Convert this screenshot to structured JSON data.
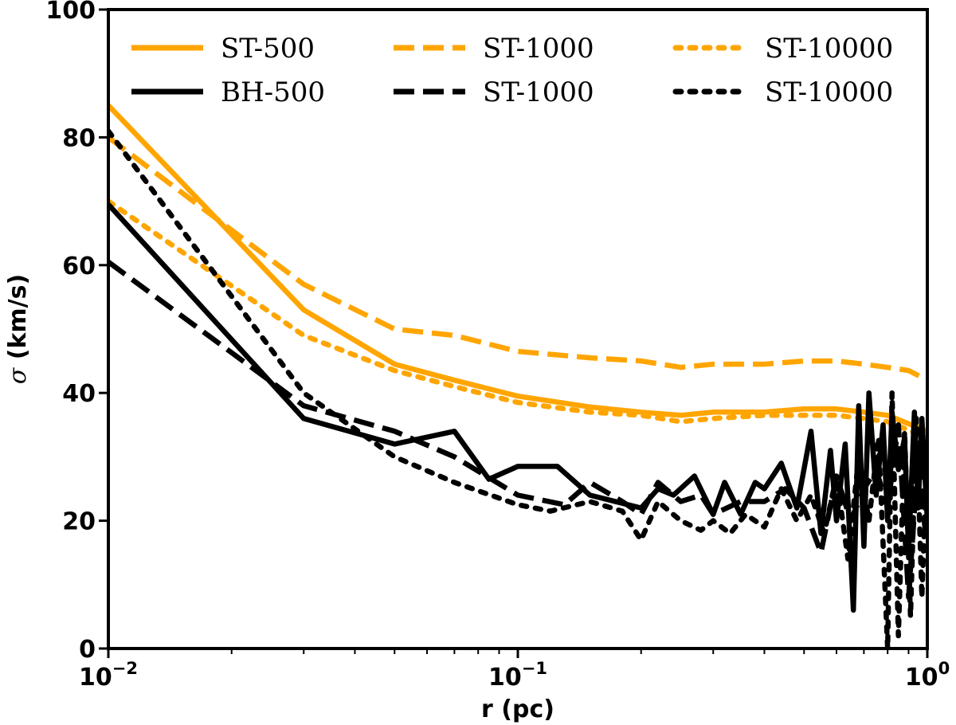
{
  "chart_data": {
    "type": "line",
    "xscale": "log",
    "xlim": [
      0.01,
      1
    ],
    "ylim": [
      0,
      100
    ],
    "xlabel": "r (pc)",
    "ylabel": {
      "symbol": "σ",
      "units": " (km/s)"
    },
    "x_ticks": [
      {
        "value": 0.01,
        "base": "10",
        "exp": "−2"
      },
      {
        "value": 0.1,
        "base": "10",
        "exp": "−1"
      },
      {
        "value": 1,
        "base": "10",
        "exp": "0"
      }
    ],
    "y_ticks": [
      0,
      20,
      40,
      60,
      80,
      100
    ],
    "colors": {
      "orange": "#FFA500",
      "black": "#000000"
    },
    "series": [
      {
        "name": "ST-500",
        "color": "#FFA500",
        "dash": "solid",
        "x": [
          0.01,
          0.03,
          0.05,
          0.07,
          0.1,
          0.15,
          0.2,
          0.25,
          0.3,
          0.4,
          0.5,
          0.6,
          0.7,
          0.8,
          1.0
        ],
        "y": [
          85,
          53,
          44.5,
          42,
          39.5,
          37.8,
          37,
          36.5,
          37,
          37,
          37.5,
          37.5,
          37,
          36.5,
          34
        ]
      },
      {
        "name": "ST-1000",
        "color": "#FFA500",
        "dash": "dashed",
        "x": [
          0.01,
          0.03,
          0.05,
          0.07,
          0.1,
          0.15,
          0.2,
          0.25,
          0.3,
          0.4,
          0.5,
          0.6,
          0.7,
          0.8,
          0.9,
          1.0
        ],
        "y": [
          80,
          57,
          50,
          49,
          46.5,
          45.5,
          45,
          44,
          44.5,
          44.5,
          45,
          45,
          44.5,
          44,
          43.5,
          42
        ]
      },
      {
        "name": "ST-10000",
        "color": "#FFA500",
        "dash": "dotted",
        "x": [
          0.01,
          0.03,
          0.05,
          0.07,
          0.1,
          0.15,
          0.2,
          0.25,
          0.3,
          0.4,
          0.5,
          0.6,
          0.7,
          0.8,
          1.0
        ],
        "y": [
          70,
          49,
          43.5,
          41,
          38.5,
          37,
          36.5,
          35.5,
          36,
          36.5,
          36.5,
          36.5,
          36,
          35.5,
          33
        ]
      },
      {
        "name": "BH-500",
        "color": "#000000",
        "dash": "solid",
        "x": [
          0.01,
          0.03,
          0.05,
          0.07,
          0.085,
          0.1,
          0.125,
          0.15,
          0.2,
          0.22,
          0.24,
          0.27,
          0.3,
          0.32,
          0.35,
          0.38,
          0.4,
          0.44,
          0.48,
          0.52,
          0.55,
          0.58,
          0.6,
          0.63,
          0.66,
          0.68,
          0.7,
          0.72,
          0.75,
          0.78,
          0.8,
          0.82,
          0.85,
          0.88,
          0.9,
          0.93,
          0.95,
          0.97,
          1.0
        ],
        "y": [
          69.5,
          36,
          32,
          34,
          26.5,
          28.5,
          28.5,
          24,
          22,
          25,
          24,
          27,
          21,
          26,
          21,
          26,
          25,
          29,
          22,
          34,
          18,
          31,
          20,
          32,
          6,
          38,
          16,
          40,
          24,
          35,
          20,
          37,
          28,
          33,
          15,
          37,
          22,
          36,
          20
        ]
      },
      {
        "name": "ST-1000",
        "color": "#000000",
        "dash": "dashed",
        "x": [
          0.01,
          0.03,
          0.05,
          0.07,
          0.1,
          0.13,
          0.15,
          0.18,
          0.2,
          0.22,
          0.25,
          0.28,
          0.3,
          0.35,
          0.4,
          0.45,
          0.5,
          0.55,
          0.6,
          0.65,
          0.7,
          0.75,
          0.8,
          0.85,
          0.9,
          0.95,
          1.0
        ],
        "y": [
          60.5,
          38,
          34,
          30,
          24,
          22.5,
          26,
          23,
          21,
          26,
          23,
          24,
          21,
          23,
          23,
          25,
          22,
          15,
          27,
          20,
          25,
          28,
          22,
          35,
          8,
          30,
          15
        ]
      },
      {
        "name": "ST-10000",
        "color": "#000000",
        "dash": "dotted",
        "x": [
          0.01,
          0.03,
          0.05,
          0.07,
          0.1,
          0.12,
          0.15,
          0.18,
          0.2,
          0.22,
          0.25,
          0.28,
          0.3,
          0.33,
          0.36,
          0.4,
          0.44,
          0.48,
          0.52,
          0.56,
          0.6,
          0.64,
          0.68,
          0.72,
          0.76,
          0.8,
          0.82,
          0.85,
          0.88,
          0.91,
          0.94,
          0.97,
          1.0
        ],
        "y": [
          81,
          40,
          30,
          26,
          22.5,
          21.5,
          23,
          21.5,
          17,
          23,
          20,
          18.5,
          20,
          18,
          21,
          19,
          25,
          20,
          24,
          18,
          27,
          14,
          30,
          20,
          33,
          0,
          40,
          2,
          34,
          5,
          36,
          8,
          33
        ]
      }
    ],
    "legend": {
      "placement": "top",
      "columns": 3,
      "order": [
        0,
        1,
        2,
        3,
        4,
        5
      ]
    }
  }
}
